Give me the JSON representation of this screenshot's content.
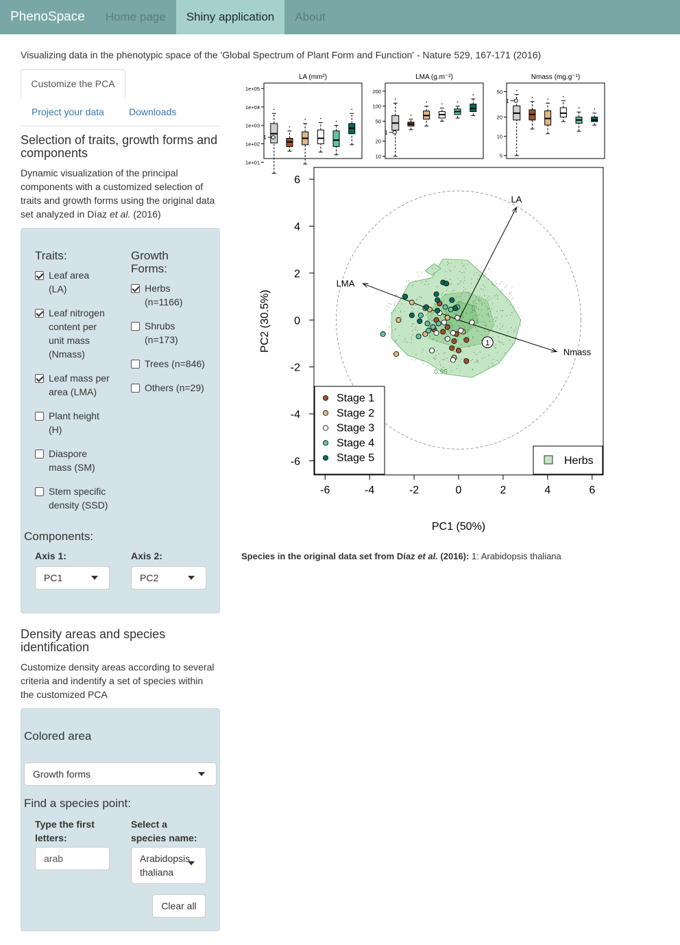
{
  "navbar": {
    "brand": "PhenoSpace",
    "items": [
      "Home page",
      "Shiny application",
      "About"
    ],
    "active": "Shiny application"
  },
  "subtitle": "Visualizing data in the phenotypic space of the 'Global Spectrum of Plant Form and Function' - Nature 529, 167-171 (2016)",
  "tabs": {
    "customize": "Customize the PCA",
    "project": "Project your data",
    "downloads": "Downloads"
  },
  "selection": {
    "heading_l1": "Selection of traits, growth forms and",
    "heading_l2": "components",
    "desc_l1": "Dynamic visualization of the principal",
    "desc_l2": "components with a customized selection of",
    "desc_l3": "traits and growth forms using the original data",
    "desc_l4_a": "set analyzed in Díaz ",
    "desc_l4_em": "et al.",
    "desc_l4_b": " (2016)"
  },
  "traits": {
    "label": "Traits:",
    "items": [
      {
        "lines": [
          "Leaf area",
          "(LA)"
        ],
        "checked": true
      },
      {
        "lines": [
          "Leaf nitrogen",
          "content per",
          "unit mass",
          "(Nmass)"
        ],
        "checked": true
      },
      {
        "lines": [
          "Leaf mass per",
          "area (LMA)"
        ],
        "checked": true
      },
      {
        "lines": [
          "Plant height",
          "(H)"
        ],
        "checked": false
      },
      {
        "lines": [
          "Diaspore",
          "mass (SM)"
        ],
        "checked": false
      },
      {
        "lines": [
          "Stem specific",
          "density (SSD)"
        ],
        "checked": false
      }
    ]
  },
  "growth_forms": {
    "label_l1": "Growth",
    "label_l2": "Forms:",
    "items": [
      {
        "lines": [
          "Herbs",
          "(n=1166)"
        ],
        "checked": true
      },
      {
        "lines": [
          "Shrubs",
          "(n=173)"
        ],
        "checked": false
      },
      {
        "lines": [
          "Trees (n=846)"
        ],
        "checked": false
      },
      {
        "lines": [
          "Others (n=29)"
        ],
        "checked": false
      }
    ]
  },
  "components": {
    "label": "Components:",
    "axis1_label": "Axis 1:",
    "axis1_value": "PC1",
    "axis2_label": "Axis 2:",
    "axis2_value": "PC2"
  },
  "density": {
    "heading_l1": "Density areas and species",
    "heading_l2": "identification",
    "desc_l1": "Customize density areas according to several",
    "desc_l2": "criteria and indentify a set of species within",
    "desc_l3": "the customized PCA",
    "colored_area_label": "Colored area",
    "colored_area_value": "Growth forms",
    "find_label": "Find a species point:",
    "type_label_l1": "Type the first",
    "type_label_l2": "letters:",
    "type_value": "arab",
    "select_label_l1": "Select a",
    "select_label_l2": "species name:",
    "select_value_l1": "Arabidopsis",
    "select_value_l2": "thaliana",
    "clear_button": "Clear all"
  },
  "species_line": {
    "bold_a": "Species in the original data set from Díaz ",
    "bold_em": "et al.",
    "bold_b": " (2016):",
    "rest": " 1: Arabidopsis thaliana"
  },
  "colors": {
    "navbar": "#78a7a5",
    "nav_active": "#a6d0cc",
    "well": "#d4e3e8",
    "herbs_fill": "#c4e6c4",
    "herbs_dark": "#9bd39b",
    "stage1": "#a0522d",
    "stage2": "#deb887",
    "stage3": "#ffffff",
    "stage4": "#66c2a4",
    "stage5": "#006d5b"
  },
  "chart_data": [
    {
      "type": "box",
      "title": "LA (mm²)",
      "log_scale": true,
      "yticks": [
        "1e+01",
        "1e+02",
        "1e+03",
        "1e+04",
        "1e+05"
      ],
      "ylim": [
        1.2,
        5.3
      ],
      "marker_label": "1",
      "marker_value": 2.35,
      "groups": [
        "all",
        "Stage 1",
        "Stage 2",
        "Stage 3",
        "Stage 4",
        "Stage 5"
      ],
      "stats_log10": [
        [
          0.4,
          2.05,
          2.55,
          3.1,
          3.65
        ],
        [
          1.6,
          1.85,
          2.1,
          2.3,
          2.7
        ],
        [
          0.9,
          1.95,
          2.3,
          2.65,
          3.1
        ],
        [
          1.55,
          2.0,
          2.3,
          2.75,
          3.15
        ],
        [
          1.4,
          1.85,
          2.2,
          2.7,
          3.0
        ],
        [
          1.95,
          2.55,
          2.85,
          3.1,
          3.65
        ]
      ]
    },
    {
      "type": "box",
      "title": "LMA (g.m⁻²)",
      "log_scale": true,
      "yticks": [
        "10",
        "20",
        "50",
        "100",
        "200"
      ],
      "ylim": [
        9,
        290
      ],
      "marker_label": "1",
      "marker_value": 30,
      "groups": [
        "all",
        "Stage 1",
        "Stage 2",
        "Stage 3",
        "Stage 4",
        "Stage 5"
      ],
      "stats": [
        [
          10,
          33,
          46,
          65,
          115
        ],
        [
          34,
          40,
          44,
          48,
          55
        ],
        [
          40,
          55,
          65,
          80,
          100
        ],
        [
          50,
          58,
          68,
          78,
          92
        ],
        [
          58,
          68,
          78,
          88,
          100
        ],
        [
          65,
          78,
          90,
          110,
          140
        ]
      ]
    },
    {
      "type": "box",
      "title": "Nmass (mg.g⁻¹)",
      "log_scale": true,
      "yticks": [
        "5",
        "10",
        "20",
        "50"
      ],
      "ylim": [
        4.5,
        68
      ],
      "marker_label": "1",
      "marker_value": 36,
      "groups": [
        "all",
        "Stage 1",
        "Stage 2",
        "Stage 3",
        "Stage 4",
        "Stage 5"
      ],
      "stats": [
        [
          5,
          18,
          23,
          30,
          45
        ],
        [
          13,
          18,
          22,
          26,
          35
        ],
        [
          11,
          15,
          19,
          25,
          33
        ],
        [
          17,
          20,
          23,
          28,
          36
        ],
        [
          12,
          16,
          18,
          20,
          24
        ],
        [
          15,
          17,
          18,
          20,
          23
        ]
      ]
    },
    {
      "type": "scatter",
      "xlabel": "PC1 (50%)",
      "ylabel": "PC2 (30.5%)",
      "xlim": [
        -6.5,
        6.5
      ],
      "ylim": [
        -6.6,
        6.5
      ],
      "xticks": [
        "-6",
        "-4",
        "-2",
        "0",
        "2",
        "4",
        "6"
      ],
      "yticks": [
        "-6",
        "-4",
        "-2",
        "0",
        "2",
        "4",
        "6"
      ],
      "circle_radius": 5.5,
      "contour_label": "0.95",
      "legend_stages": [
        "Stage 1",
        "Stage 2",
        "Stage 3",
        "Stage 4",
        "Stage 5"
      ],
      "legend_area": "Herbs",
      "legend_placement": "bottom-left / bottom-right",
      "vectors": [
        {
          "name": "LA",
          "x": 2.6,
          "y": 4.8
        },
        {
          "name": "LMA",
          "x": -4.3,
          "y": 1.55
        },
        {
          "name": "Nmass",
          "x": 4.4,
          "y": -1.35
        }
      ],
      "highlight": {
        "label": "1",
        "x": 1.3,
        "y": -0.95
      },
      "points": [
        {
          "stage": 1,
          "x": -1.0,
          "y": 0.0
        },
        {
          "stage": 1,
          "x": -1.1,
          "y": -0.4
        },
        {
          "stage": 1,
          "x": -0.7,
          "y": -0.5
        },
        {
          "stage": 1,
          "x": -0.5,
          "y": -0.3
        },
        {
          "stage": 1,
          "x": -0.1,
          "y": -0.6
        },
        {
          "stage": 1,
          "x": -0.3,
          "y": -1.2
        },
        {
          "stage": 1,
          "x": 0.0,
          "y": -1.3
        },
        {
          "stage": 1,
          "x": 0.35,
          "y": -0.85
        },
        {
          "stage": 1,
          "x": 0.35,
          "y": -1.75
        },
        {
          "stage": 1,
          "x": -0.85,
          "y": 0.7
        },
        {
          "stage": 1,
          "x": -0.2,
          "y": -0.9
        },
        {
          "stage": 2,
          "x": -2.8,
          "y": -1.45
        },
        {
          "stage": 2,
          "x": -2.7,
          "y": 0.0
        },
        {
          "stage": 2,
          "x": -2.1,
          "y": 0.75
        },
        {
          "stage": 2,
          "x": -1.5,
          "y": -0.6
        },
        {
          "stage": 2,
          "x": -1.3,
          "y": 0.45
        },
        {
          "stage": 2,
          "x": -0.5,
          "y": 0.1
        },
        {
          "stage": 2,
          "x": 0.2,
          "y": -0.5
        },
        {
          "stage": 2,
          "x": -0.2,
          "y": -1.6
        },
        {
          "stage": 3,
          "x": -1.2,
          "y": -1.3
        },
        {
          "stage": 3,
          "x": -0.5,
          "y": -0.8
        },
        {
          "stage": 3,
          "x": -0.25,
          "y": -0.55
        },
        {
          "stage": 3,
          "x": 0.1,
          "y": -0.45
        },
        {
          "stage": 3,
          "x": 0.6,
          "y": -0.1
        },
        {
          "stage": 3,
          "x": -0.85,
          "y": 0.3
        },
        {
          "stage": 3,
          "x": -1.0,
          "y": -0.55
        },
        {
          "stage": 3,
          "x": -0.05,
          "y": 0.1
        },
        {
          "stage": 3,
          "x": -0.25,
          "y": -1.7
        },
        {
          "stage": 3,
          "x": -0.65,
          "y": -0.1
        },
        {
          "stage": 4,
          "x": -3.4,
          "y": -0.6
        },
        {
          "stage": 4,
          "x": -1.8,
          "y": -0.7
        },
        {
          "stage": 4,
          "x": -1.7,
          "y": 0.2
        },
        {
          "stage": 4,
          "x": -1.5,
          "y": 0.5
        },
        {
          "stage": 4,
          "x": -1.35,
          "y": -0.45
        },
        {
          "stage": 4,
          "x": -1.15,
          "y": -0.3
        },
        {
          "stage": 4,
          "x": -0.6,
          "y": 0.55
        },
        {
          "stage": 4,
          "x": -0.35,
          "y": 0.45
        },
        {
          "stage": 4,
          "x": -0.05,
          "y": 0.55
        },
        {
          "stage": 4,
          "x": -0.9,
          "y": -0.15
        },
        {
          "stage": 4,
          "x": -1.4,
          "y": -0.15
        },
        {
          "stage": 5,
          "x": -2.4,
          "y": 1.0
        },
        {
          "stage": 5,
          "x": -2.1,
          "y": 0.2
        },
        {
          "stage": 5,
          "x": -1.75,
          "y": -0.05
        },
        {
          "stage": 5,
          "x": -1.45,
          "y": 0.55
        },
        {
          "stage": 5,
          "x": -1.0,
          "y": 1.1
        },
        {
          "stage": 5,
          "x": -0.95,
          "y": 0.85
        },
        {
          "stage": 5,
          "x": -0.7,
          "y": 1.6
        },
        {
          "stage": 5,
          "x": -0.55,
          "y": 1.55
        },
        {
          "stage": 5,
          "x": -0.3,
          "y": 0.85
        },
        {
          "stage": 5,
          "x": -0.15,
          "y": 0.5
        },
        {
          "stage": 5,
          "x": -0.95,
          "y": 0.4
        }
      ]
    }
  ]
}
